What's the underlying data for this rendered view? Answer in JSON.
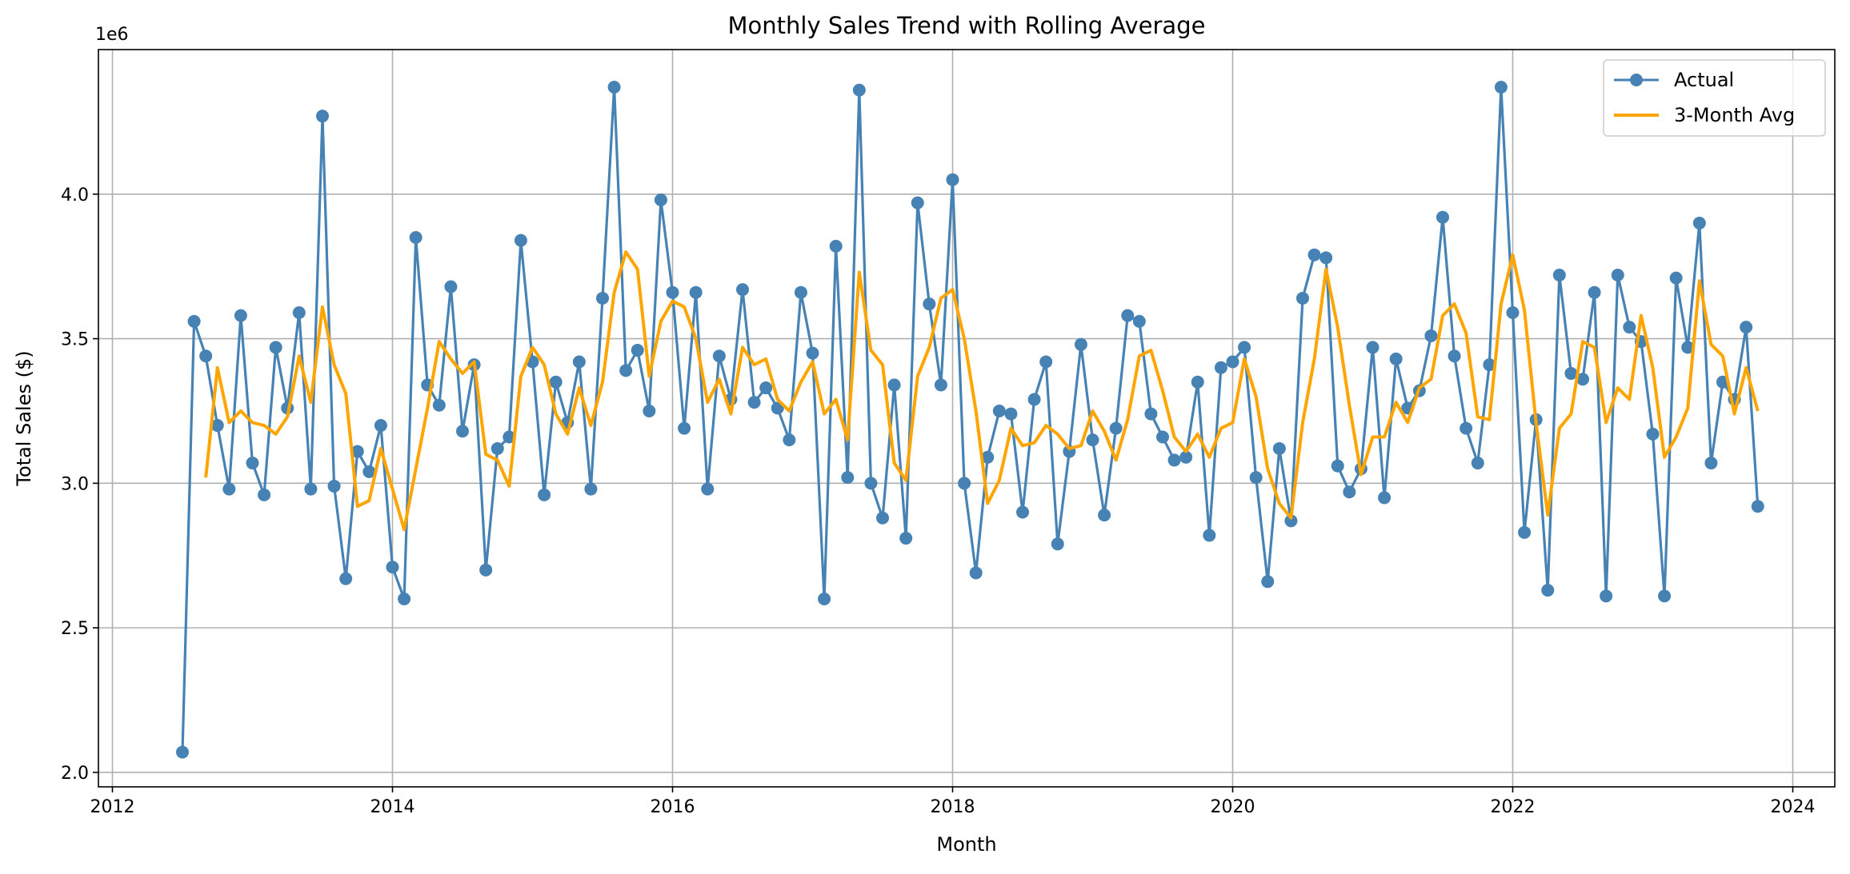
{
  "chart_data": {
    "type": "line",
    "title": "Monthly Sales Trend with Rolling Average",
    "xlabel": "Month",
    "ylabel": "Total Sales ($)",
    "y_offset_label": "1e6",
    "xlim": [
      2011.9,
      2024.3
    ],
    "ylim": [
      1.95,
      4.5
    ],
    "x_ticks": [
      2012,
      2014,
      2016,
      2018,
      2020,
      2022,
      2024
    ],
    "x_tick_labels": [
      "2012",
      "2014",
      "2016",
      "2018",
      "2020",
      "2022",
      "2024"
    ],
    "y_ticks": [
      2.0,
      2.5,
      3.0,
      3.5,
      4.0
    ],
    "y_tick_labels": [
      "2.0",
      "2.5",
      "3.0",
      "3.5",
      "4.0"
    ],
    "grid": true,
    "legend_position": "top-right",
    "x_start": "2012-07",
    "x": [
      "2012-07",
      "2012-08",
      "2012-09",
      "2012-10",
      "2012-11",
      "2012-12",
      "2013-01",
      "2013-02",
      "2013-03",
      "2013-04",
      "2013-05",
      "2013-06",
      "2013-07",
      "2013-08",
      "2013-09",
      "2013-10",
      "2013-11",
      "2013-12",
      "2014-01",
      "2014-02",
      "2014-03",
      "2014-04",
      "2014-05",
      "2014-06",
      "2014-07",
      "2014-08",
      "2014-09",
      "2014-10",
      "2014-11",
      "2014-12",
      "2015-01",
      "2015-02",
      "2015-03",
      "2015-04",
      "2015-05",
      "2015-06",
      "2015-07",
      "2015-08",
      "2015-09",
      "2015-10",
      "2015-11",
      "2015-12",
      "2016-01",
      "2016-02",
      "2016-03",
      "2016-04",
      "2016-05",
      "2016-06",
      "2016-07",
      "2016-08",
      "2016-09",
      "2016-10",
      "2016-11",
      "2016-12",
      "2017-01",
      "2017-02",
      "2017-03",
      "2017-04",
      "2017-05",
      "2017-06",
      "2017-07",
      "2017-08",
      "2017-09",
      "2017-10",
      "2017-11",
      "2017-12",
      "2018-01",
      "2018-02",
      "2018-03",
      "2018-04",
      "2018-05",
      "2018-06",
      "2018-07",
      "2018-08",
      "2018-09",
      "2018-10",
      "2018-11",
      "2018-12",
      "2019-01",
      "2019-02",
      "2019-03",
      "2019-04",
      "2019-05",
      "2019-06",
      "2019-07",
      "2019-08",
      "2019-09",
      "2019-10",
      "2019-11",
      "2019-12",
      "2020-01",
      "2020-02",
      "2020-03",
      "2020-04",
      "2020-05",
      "2020-06",
      "2020-07",
      "2020-08",
      "2020-09",
      "2020-10",
      "2020-11",
      "2020-12",
      "2021-01",
      "2021-02",
      "2021-03",
      "2021-04",
      "2021-05",
      "2021-06",
      "2021-07",
      "2021-08",
      "2021-09",
      "2021-10",
      "2021-11",
      "2021-12",
      "2022-01",
      "2022-02",
      "2022-03",
      "2022-04",
      "2022-05",
      "2022-06",
      "2022-07",
      "2022-08",
      "2022-09",
      "2022-10",
      "2022-11",
      "2022-12",
      "2023-01",
      "2023-02",
      "2023-03",
      "2023-04",
      "2023-05",
      "2023-06",
      "2023-07",
      "2023-08",
      "2023-09",
      "2023-10"
    ],
    "series": [
      {
        "name": "Actual",
        "color": "#4682b4",
        "marker": "circle",
        "values": [
          2.07,
          3.56,
          3.44,
          3.2,
          2.98,
          3.58,
          3.07,
          2.96,
          3.47,
          3.26,
          3.59,
          2.98,
          4.27,
          2.99,
          2.67,
          3.11,
          3.04,
          3.2,
          2.71,
          2.6,
          3.85,
          3.34,
          3.27,
          3.68,
          3.18,
          3.41,
          2.7,
          3.12,
          3.16,
          3.84,
          3.42,
          2.96,
          3.35,
          3.21,
          3.42,
          2.98,
          3.64,
          4.37,
          3.39,
          3.46,
          3.25,
          3.98,
          3.66,
          3.19,
          3.66,
          2.98,
          3.44,
          3.29,
          3.67,
          3.28,
          3.33,
          3.26,
          3.15,
          3.66,
          3.45,
          2.6,
          3.82,
          3.02,
          4.36,
          3.0,
          2.88,
          3.34,
          2.81,
          3.97,
          3.62,
          3.34,
          4.05,
          3.0,
          2.69,
          3.09,
          3.25,
          3.24,
          2.9,
          3.29,
          3.42,
          2.79,
          3.11,
          3.48,
          3.15,
          2.89,
          3.19,
          3.58,
          3.56,
          3.24,
          3.16,
          3.08,
          3.09,
          3.35,
          2.82,
          3.4,
          3.42,
          3.47,
          3.02,
          2.66,
          3.12,
          2.87,
          3.64,
          3.79,
          3.78,
          3.06,
          2.97,
          3.05,
          3.47,
          2.95,
          3.43,
          3.26,
          3.32,
          3.51,
          3.92,
          3.44,
          3.19,
          3.07,
          3.41,
          4.37,
          3.59,
          2.83,
          3.22,
          2.63,
          3.72,
          3.38,
          3.36,
          3.66,
          2.61,
          3.72,
          3.54,
          3.49,
          3.17,
          2.61,
          3.71,
          3.47,
          3.9,
          3.07,
          3.35,
          3.29,
          3.54,
          2.92
        ]
      },
      {
        "name": "3-Month Avg",
        "color": "#ffa500",
        "marker": "none",
        "values": [
          null,
          null,
          3.02,
          3.4,
          3.21,
          3.25,
          3.21,
          3.2,
          3.17,
          3.23,
          3.44,
          3.28,
          3.61,
          3.41,
          3.31,
          2.92,
          2.94,
          3.12,
          2.98,
          2.84,
          3.05,
          3.26,
          3.49,
          3.43,
          3.38,
          3.42,
          3.1,
          3.08,
          2.99,
          3.37,
          3.47,
          3.41,
          3.24,
          3.17,
          3.33,
          3.2,
          3.35,
          3.66,
          3.8,
          3.74,
          3.37,
          3.56,
          3.63,
          3.61,
          3.5,
          3.28,
          3.36,
          3.24,
          3.47,
          3.41,
          3.43,
          3.29,
          3.25,
          3.35,
          3.42,
          3.24,
          3.29,
          3.15,
          3.73,
          3.46,
          3.41,
          3.07,
          3.01,
          3.37,
          3.47,
          3.64,
          3.67,
          3.5,
          3.25,
          2.93,
          3.01,
          3.19,
          3.13,
          3.14,
          3.2,
          3.17,
          3.12,
          3.13,
          3.25,
          3.18,
          3.08,
          3.22,
          3.44,
          3.46,
          3.32,
          3.16,
          3.11,
          3.17,
          3.09,
          3.19,
          3.21,
          3.43,
          3.3,
          3.05,
          2.93,
          2.88,
          3.21,
          3.43,
          3.74,
          3.54,
          3.27,
          3.03,
          3.16,
          3.16,
          3.28,
          3.21,
          3.33,
          3.36,
          3.58,
          3.62,
          3.52,
          3.23,
          3.22,
          3.62,
          3.79,
          3.6,
          3.21,
          2.89,
          3.19,
          3.24,
          3.49,
          3.47,
          3.21,
          3.33,
          3.29,
          3.58,
          3.4,
          3.09,
          3.16,
          3.26,
          3.7,
          3.48,
          3.44,
          3.24,
          3.4,
          3.25
        ]
      }
    ]
  }
}
